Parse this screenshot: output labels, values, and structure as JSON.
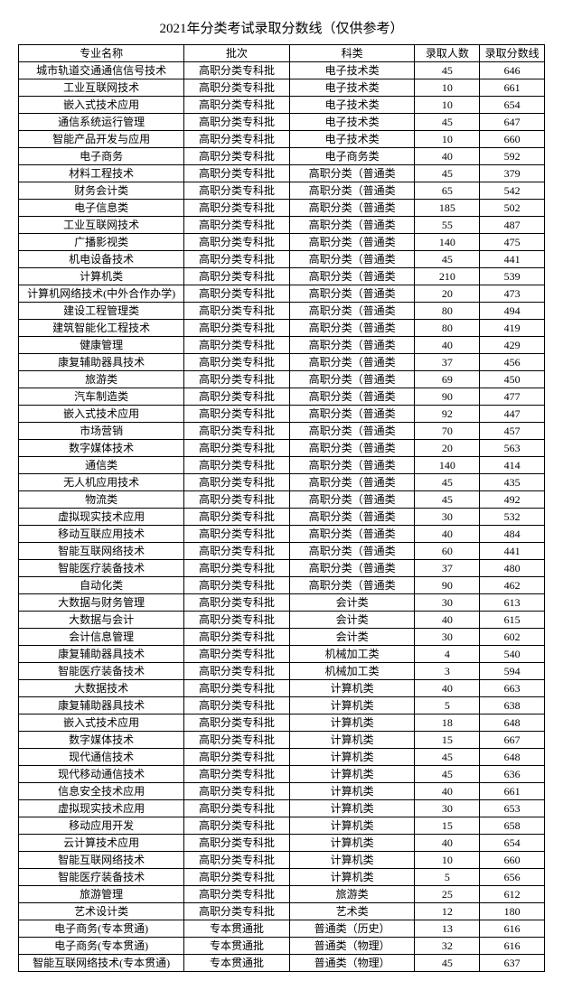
{
  "title": "2021年分类考试录取分数线（仅供参考）",
  "columns": [
    "专业名称",
    "批次",
    "科类",
    "录取人数",
    "录取分数线"
  ],
  "rows": [
    [
      "城市轨道交通通信信号技术",
      "高职分类专科批",
      "电子技术类",
      "45",
      "646"
    ],
    [
      "工业互联网技术",
      "高职分类专科批",
      "电子技术类",
      "10",
      "661"
    ],
    [
      "嵌入式技术应用",
      "高职分类专科批",
      "电子技术类",
      "10",
      "654"
    ],
    [
      "通信系统运行管理",
      "高职分类专科批",
      "电子技术类",
      "45",
      "647"
    ],
    [
      "智能产品开发与应用",
      "高职分类专科批",
      "电子技术类",
      "10",
      "660"
    ],
    [
      "电子商务",
      "高职分类专科批",
      "电子商务类",
      "40",
      "592"
    ],
    [
      "材料工程技术",
      "高职分类专科批",
      "高职分类（普通类",
      "45",
      "379"
    ],
    [
      "财务会计类",
      "高职分类专科批",
      "高职分类（普通类",
      "65",
      "542"
    ],
    [
      "电子信息类",
      "高职分类专科批",
      "高职分类（普通类",
      "185",
      "502"
    ],
    [
      "工业互联网技术",
      "高职分类专科批",
      "高职分类（普通类",
      "55",
      "487"
    ],
    [
      "广播影视类",
      "高职分类专科批",
      "高职分类（普通类",
      "140",
      "475"
    ],
    [
      "机电设备技术",
      "高职分类专科批",
      "高职分类（普通类",
      "45",
      "441"
    ],
    [
      "计算机类",
      "高职分类专科批",
      "高职分类（普通类",
      "210",
      "539"
    ],
    [
      "计算机网络技术(中外合作办学)",
      "高职分类专科批",
      "高职分类（普通类",
      "20",
      "473"
    ],
    [
      "建设工程管理类",
      "高职分类专科批",
      "高职分类（普通类",
      "80",
      "494"
    ],
    [
      "建筑智能化工程技术",
      "高职分类专科批",
      "高职分类（普通类",
      "80",
      "419"
    ],
    [
      "健康管理",
      "高职分类专科批",
      "高职分类（普通类",
      "40",
      "429"
    ],
    [
      "康复辅助器具技术",
      "高职分类专科批",
      "高职分类（普通类",
      "37",
      "456"
    ],
    [
      "旅游类",
      "高职分类专科批",
      "高职分类（普通类",
      "69",
      "450"
    ],
    [
      "汽车制造类",
      "高职分类专科批",
      "高职分类（普通类",
      "90",
      "477"
    ],
    [
      "嵌入式技术应用",
      "高职分类专科批",
      "高职分类（普通类",
      "92",
      "447"
    ],
    [
      "市场营销",
      "高职分类专科批",
      "高职分类（普通类",
      "70",
      "457"
    ],
    [
      "数字媒体技术",
      "高职分类专科批",
      "高职分类（普通类",
      "20",
      "563"
    ],
    [
      "通信类",
      "高职分类专科批",
      "高职分类（普通类",
      "140",
      "414"
    ],
    [
      "无人机应用技术",
      "高职分类专科批",
      "高职分类（普通类",
      "45",
      "435"
    ],
    [
      "物流类",
      "高职分类专科批",
      "高职分类（普通类",
      "45",
      "492"
    ],
    [
      "虚拟现实技术应用",
      "高职分类专科批",
      "高职分类（普通类",
      "30",
      "532"
    ],
    [
      "移动互联应用技术",
      "高职分类专科批",
      "高职分类（普通类",
      "40",
      "484"
    ],
    [
      "智能互联网络技术",
      "高职分类专科批",
      "高职分类（普通类",
      "60",
      "441"
    ],
    [
      "智能医疗装备技术",
      "高职分类专科批",
      "高职分类（普通类",
      "37",
      "480"
    ],
    [
      "自动化类",
      "高职分类专科批",
      "高职分类（普通类",
      "90",
      "462"
    ],
    [
      "大数据与财务管理",
      "高职分类专科批",
      "会计类",
      "30",
      "613"
    ],
    [
      "大数据与会计",
      "高职分类专科批",
      "会计类",
      "40",
      "615"
    ],
    [
      "会计信息管理",
      "高职分类专科批",
      "会计类",
      "30",
      "602"
    ],
    [
      "康复辅助器具技术",
      "高职分类专科批",
      "机械加工类",
      "4",
      "540"
    ],
    [
      "智能医疗装备技术",
      "高职分类专科批",
      "机械加工类",
      "3",
      "594"
    ],
    [
      "大数据技术",
      "高职分类专科批",
      "计算机类",
      "40",
      "663"
    ],
    [
      "康复辅助器具技术",
      "高职分类专科批",
      "计算机类",
      "5",
      "638"
    ],
    [
      "嵌入式技术应用",
      "高职分类专科批",
      "计算机类",
      "18",
      "648"
    ],
    [
      "数字媒体技术",
      "高职分类专科批",
      "计算机类",
      "15",
      "667"
    ],
    [
      "现代通信技术",
      "高职分类专科批",
      "计算机类",
      "45",
      "648"
    ],
    [
      "现代移动通信技术",
      "高职分类专科批",
      "计算机类",
      "45",
      "636"
    ],
    [
      "信息安全技术应用",
      "高职分类专科批",
      "计算机类",
      "40",
      "661"
    ],
    [
      "虚拟现实技术应用",
      "高职分类专科批",
      "计算机类",
      "30",
      "653"
    ],
    [
      "移动应用开发",
      "高职分类专科批",
      "计算机类",
      "15",
      "658"
    ],
    [
      "云计算技术应用",
      "高职分类专科批",
      "计算机类",
      "40",
      "654"
    ],
    [
      "智能互联网络技术",
      "高职分类专科批",
      "计算机类",
      "10",
      "660"
    ],
    [
      "智能医疗装备技术",
      "高职分类专科批",
      "计算机类",
      "5",
      "656"
    ],
    [
      "旅游管理",
      "高职分类专科批",
      "旅游类",
      "25",
      "612"
    ],
    [
      "艺术设计类",
      "高职分类专科批",
      "艺术类",
      "12",
      "180"
    ],
    [
      "电子商务(专本贯通)",
      "专本贯通批",
      "普通类（历史）",
      "13",
      "616"
    ],
    [
      "电子商务(专本贯通)",
      "专本贯通批",
      "普通类（物理）",
      "32",
      "616"
    ],
    [
      "智能互联网络技术(专本贯通)",
      "专本贯通批",
      "普通类（物理）",
      "45",
      "637"
    ]
  ]
}
